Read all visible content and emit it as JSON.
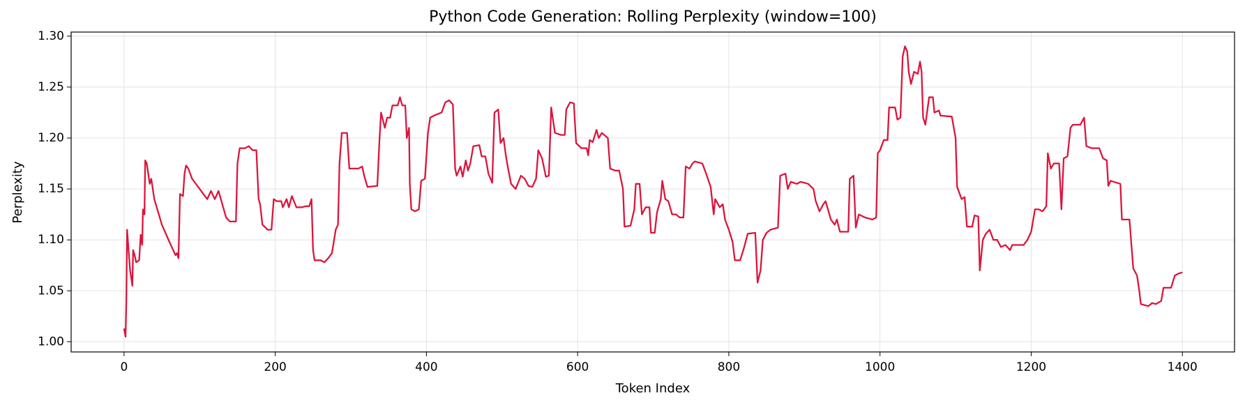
{
  "chart_data": {
    "type": "line",
    "title": "Python Code Generation: Rolling Perplexity (window=100)",
    "x_label": "Token Index",
    "y_label": "Perplexity",
    "color": "#dc143c",
    "grid": true,
    "xlim": [
      -70,
      1469
    ],
    "ylim": [
      0.99,
      1.304
    ],
    "xticks": [
      0,
      200,
      400,
      600,
      800,
      1000,
      1200,
      1400
    ],
    "yticks": [
      {
        "value": 1.0,
        "label": "1.00"
      },
      1.05,
      {
        "value": 1.1,
        "label": "1.10"
      },
      1.15,
      {
        "value": 1.2,
        "label": "1.20"
      },
      1.25,
      {
        "value": 1.3,
        "label": "1.30"
      }
    ],
    "x": [
      0,
      2,
      3,
      4,
      6,
      8,
      10,
      11,
      12,
      14,
      16,
      20,
      22,
      24,
      25,
      27,
      28,
      30,
      32,
      34,
      36,
      40,
      50,
      60,
      65,
      68,
      70,
      72,
      74,
      78,
      80,
      82,
      85,
      90,
      100,
      105,
      110,
      115,
      120,
      125,
      130,
      135,
      140,
      148,
      150,
      153,
      160,
      165,
      170,
      175,
      178,
      180,
      183,
      190,
      195,
      198,
      202,
      208,
      210,
      215,
      218,
      222,
      228,
      235,
      240,
      245,
      248,
      250,
      252,
      260,
      265,
      270,
      275,
      280,
      283,
      285,
      288,
      295,
      298,
      305,
      310,
      315,
      318,
      322,
      335,
      338,
      340,
      345,
      348,
      352,
      355,
      362,
      365,
      368,
      372,
      374,
      377,
      378,
      380,
      385,
      390,
      393,
      398,
      402,
      405,
      410,
      420,
      425,
      430,
      435,
      438,
      440,
      445,
      448,
      452,
      455,
      458,
      462,
      470,
      473,
      478,
      482,
      487,
      490,
      495,
      498,
      502,
      505,
      508,
      512,
      518,
      525,
      530,
      535,
      540,
      545,
      548,
      553,
      558,
      562,
      565,
      568,
      570,
      578,
      583,
      585,
      590,
      595,
      598,
      605,
      612,
      614,
      616,
      620,
      625,
      628,
      632,
      640,
      643,
      650,
      655,
      660,
      662,
      670,
      675,
      677,
      682,
      685,
      690,
      695,
      697,
      702,
      705,
      710,
      712,
      716,
      720,
      725,
      730,
      735,
      740,
      743,
      748,
      752,
      755,
      765,
      770,
      776,
      780,
      782,
      788,
      792,
      795,
      800,
      805,
      808,
      815,
      820,
      825,
      835,
      838,
      842,
      845,
      850,
      855,
      865,
      868,
      875,
      878,
      882,
      890,
      895,
      905,
      912,
      915,
      920,
      925,
      928,
      935,
      940,
      943,
      947,
      958,
      960,
      965,
      968,
      972,
      980,
      990,
      995,
      997,
      1000,
      1005,
      1010,
      1012,
      1020,
      1023,
      1027,
      1030,
      1033,
      1036,
      1038,
      1041,
      1045,
      1050,
      1053,
      1055,
      1057,
      1060,
      1065,
      1070,
      1072,
      1078,
      1080,
      1095,
      1100,
      1102,
      1108,
      1112,
      1115,
      1122,
      1125,
      1130,
      1132,
      1136,
      1140,
      1145,
      1150,
      1155,
      1160,
      1166,
      1172,
      1175,
      1190,
      1195,
      1200,
      1205,
      1210,
      1215,
      1220,
      1222,
      1226,
      1230,
      1237,
      1240,
      1243,
      1248,
      1252,
      1255,
      1265,
      1270,
      1273,
      1280,
      1290,
      1295,
      1300,
      1302,
      1305,
      1318,
      1320,
      1330,
      1335,
      1340,
      1343,
      1345,
      1355,
      1360,
      1365,
      1372,
      1375,
      1385,
      1390,
      1395,
      1400
    ],
    "values": [
      1.013,
      1.005,
      1.04,
      1.11,
      1.09,
      1.07,
      1.06,
      1.055,
      1.09,
      1.085,
      1.078,
      1.08,
      1.105,
      1.095,
      1.13,
      1.125,
      1.178,
      1.175,
      1.165,
      1.155,
      1.16,
      1.14,
      1.115,
      1.098,
      1.09,
      1.085,
      1.087,
      1.082,
      1.145,
      1.143,
      1.165,
      1.173,
      1.17,
      1.16,
      1.15,
      1.145,
      1.14,
      1.148,
      1.14,
      1.148,
      1.135,
      1.122,
      1.118,
      1.118,
      1.175,
      1.19,
      1.19,
      1.192,
      1.188,
      1.188,
      1.14,
      1.135,
      1.115,
      1.11,
      1.11,
      1.14,
      1.138,
      1.138,
      1.132,
      1.14,
      1.132,
      1.143,
      1.132,
      1.132,
      1.133,
      1.133,
      1.14,
      1.09,
      1.08,
      1.08,
      1.078,
      1.082,
      1.087,
      1.11,
      1.115,
      1.175,
      1.205,
      1.205,
      1.17,
      1.17,
      1.17,
      1.172,
      1.162,
      1.152,
      1.153,
      1.2,
      1.225,
      1.21,
      1.22,
      1.22,
      1.232,
      1.232,
      1.24,
      1.232,
      1.232,
      1.2,
      1.21,
      1.155,
      1.13,
      1.128,
      1.13,
      1.158,
      1.16,
      1.205,
      1.22,
      1.222,
      1.225,
      1.235,
      1.237,
      1.233,
      1.17,
      1.163,
      1.172,
      1.162,
      1.178,
      1.168,
      1.175,
      1.192,
      1.193,
      1.182,
      1.182,
      1.165,
      1.156,
      1.225,
      1.228,
      1.195,
      1.2,
      1.183,
      1.17,
      1.155,
      1.15,
      1.163,
      1.16,
      1.153,
      1.152,
      1.16,
      1.188,
      1.18,
      1.162,
      1.163,
      1.23,
      1.215,
      1.205,
      1.203,
      1.203,
      1.228,
      1.235,
      1.234,
      1.195,
      1.19,
      1.19,
      1.183,
      1.198,
      1.196,
      1.208,
      1.2,
      1.205,
      1.2,
      1.17,
      1.168,
      1.168,
      1.15,
      1.113,
      1.114,
      1.13,
      1.155,
      1.155,
      1.125,
      1.132,
      1.132,
      1.107,
      1.107,
      1.127,
      1.14,
      1.158,
      1.14,
      1.138,
      1.125,
      1.125,
      1.122,
      1.122,
      1.172,
      1.17,
      1.175,
      1.177,
      1.175,
      1.165,
      1.152,
      1.125,
      1.14,
      1.132,
      1.135,
      1.12,
      1.11,
      1.098,
      1.08,
      1.08,
      1.092,
      1.106,
      1.107,
      1.058,
      1.07,
      1.1,
      1.107,
      1.11,
      1.112,
      1.163,
      1.165,
      1.15,
      1.157,
      1.155,
      1.157,
      1.155,
      1.15,
      1.138,
      1.128,
      1.135,
      1.138,
      1.12,
      1.115,
      1.12,
      1.108,
      1.108,
      1.16,
      1.163,
      1.112,
      1.125,
      1.122,
      1.12,
      1.122,
      1.185,
      1.188,
      1.198,
      1.198,
      1.23,
      1.23,
      1.218,
      1.22,
      1.28,
      1.29,
      1.285,
      1.265,
      1.253,
      1.265,
      1.263,
      1.275,
      1.265,
      1.22,
      1.213,
      1.24,
      1.24,
      1.225,
      1.227,
      1.222,
      1.221,
      1.2,
      1.152,
      1.14,
      1.142,
      1.113,
      1.113,
      1.124,
      1.123,
      1.07,
      1.1,
      1.106,
      1.11,
      1.1,
      1.1,
      1.093,
      1.095,
      1.09,
      1.095,
      1.095,
      1.1,
      1.108,
      1.13,
      1.13,
      1.128,
      1.133,
      1.185,
      1.17,
      1.175,
      1.175,
      1.13,
      1.18,
      1.182,
      1.21,
      1.213,
      1.213,
      1.22,
      1.192,
      1.19,
      1.19,
      1.18,
      1.178,
      1.153,
      1.158,
      1.155,
      1.12,
      1.12,
      1.072,
      1.065,
      1.05,
      1.037,
      1.035,
      1.038,
      1.037,
      1.04,
      1.053,
      1.053,
      1.065,
      1.067,
      1.068
    ]
  }
}
